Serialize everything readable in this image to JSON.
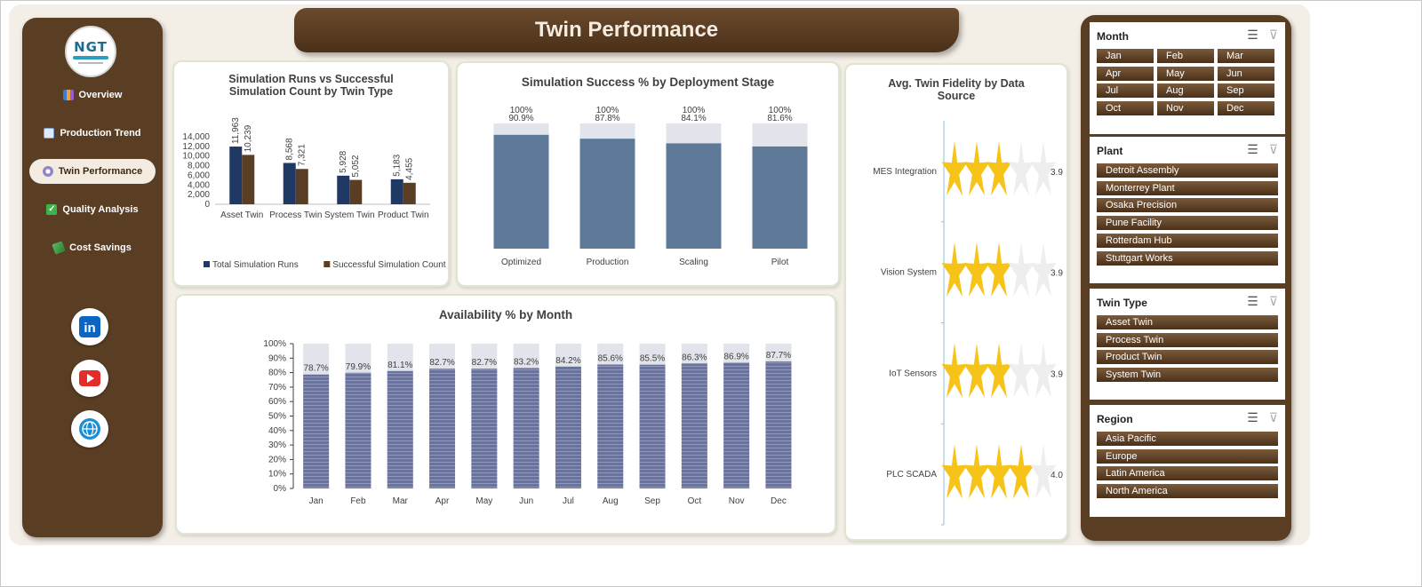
{
  "title": "Twin Performance",
  "logo_text": "NGT",
  "sidebar": {
    "items": [
      {
        "label": "Overview",
        "active": false,
        "icon": "bar-chart-icon"
      },
      {
        "label": "Production Trend",
        "active": false,
        "icon": "trend-chart-icon"
      },
      {
        "label": "Twin Performance",
        "active": true,
        "icon": "gear-icon"
      },
      {
        "label": "Quality Analysis",
        "active": false,
        "icon": "checkbox-icon"
      },
      {
        "label": "Cost Savings",
        "active": false,
        "icon": "money-icon"
      }
    ],
    "social": [
      "linkedin-icon",
      "youtube-icon",
      "globe-icon"
    ]
  },
  "charts": {
    "runs": {
      "title_line1": "Simulation Runs vs Successful",
      "title_line2": "Simulation Count by Twin Type",
      "chart_data": {
        "type": "bar",
        "categories": [
          "Asset Twin",
          "Process Twin",
          "System Twin",
          "Product Twin"
        ],
        "series": [
          {
            "name": "Total Simulation Runs",
            "values": [
              11963,
              8568,
              5928,
              5183
            ],
            "labels": [
              "11,963",
              "8,568",
              "5,928",
              "5,183"
            ],
            "color": "#1f3864"
          },
          {
            "name": "Successful Simulation Count",
            "values": [
              10239,
              7321,
              5052,
              4455
            ],
            "labels": [
              "10,239",
              "7,321",
              "5,052",
              "4,455"
            ],
            "color": "#5a3e24"
          }
        ],
        "ylim": [
          0,
          14000
        ],
        "yticks": [
          "0",
          "2,000",
          "4,000",
          "6,000",
          "8,000",
          "10,000",
          "12,000",
          "14,000"
        ],
        "legend": "bottom"
      }
    },
    "success": {
      "title": "Simulation Success % by Deployment Stage",
      "chart_data": {
        "type": "bar",
        "categories": [
          "Optimized",
          "Production",
          "Scaling",
          "Pilot"
        ],
        "values": [
          90.9,
          87.8,
          84.1,
          81.6
        ],
        "labels": [
          "90.9%",
          "87.8%",
          "84.1%",
          "81.6%"
        ],
        "target_labels": [
          "100%",
          "100%",
          "100%",
          "100%"
        ],
        "ylim": [
          0,
          100
        ]
      }
    },
    "availability": {
      "title": "Availability % by Month",
      "chart_data": {
        "type": "bar",
        "categories": [
          "Jan",
          "Feb",
          "Mar",
          "Apr",
          "May",
          "Jun",
          "Jul",
          "Aug",
          "Sep",
          "Oct",
          "Nov",
          "Dec"
        ],
        "values": [
          78.7,
          79.9,
          81.1,
          82.7,
          82.7,
          83.2,
          84.2,
          85.6,
          85.5,
          86.3,
          86.9,
          87.7
        ],
        "labels": [
          "78.7%",
          "79.9%",
          "81.1%",
          "82.7%",
          "82.7%",
          "83.2%",
          "84.2%",
          "85.6%",
          "85.5%",
          "86.3%",
          "86.9%",
          "87.7%"
        ],
        "ylim": [
          0,
          100
        ],
        "yticks": [
          "0%",
          "10%",
          "20%",
          "30%",
          "40%",
          "50%",
          "60%",
          "70%",
          "80%",
          "90%",
          "100%"
        ]
      }
    },
    "fidelity": {
      "title_line1": "Avg. Twin Fidelity by Data",
      "title_line2": "Source",
      "chart_data": {
        "type": "bar",
        "categories": [
          "MES Integration",
          "Vision System",
          "IoT Sensors",
          "PLC SCADA"
        ],
        "values": [
          3.9,
          3.9,
          3.9,
          4.0
        ],
        "labels": [
          "3.9",
          "3.9",
          "3.9",
          "4.0"
        ],
        "ylim": [
          0,
          5
        ]
      }
    }
  },
  "slicers": [
    {
      "title": "Month",
      "items": [
        "Jan",
        "Feb",
        "Mar",
        "Apr",
        "May",
        "Jun",
        "Jul",
        "Aug",
        "Sep",
        "Oct",
        "Nov",
        "Dec"
      ]
    },
    {
      "title": "Plant",
      "items": [
        "Detroit Assembly",
        "Monterrey Plant",
        "Osaka Precision",
        "Pune Facility",
        "Rotterdam Hub",
        "Stuttgart Works"
      ]
    },
    {
      "title": "Twin Type",
      "items": [
        "Asset Twin",
        "Process Twin",
        "Product Twin",
        "System Twin"
      ]
    },
    {
      "title": "Region",
      "items": [
        "Asia Pacific",
        "Europe",
        "Latin America",
        "North America"
      ]
    }
  ],
  "colors": {
    "brown": "#5a3e24",
    "navy": "#1f3864",
    "slate": "#5f7a99",
    "lavender": "#6a729e",
    "track": "#e1e4ea",
    "star": "#f6c318"
  }
}
